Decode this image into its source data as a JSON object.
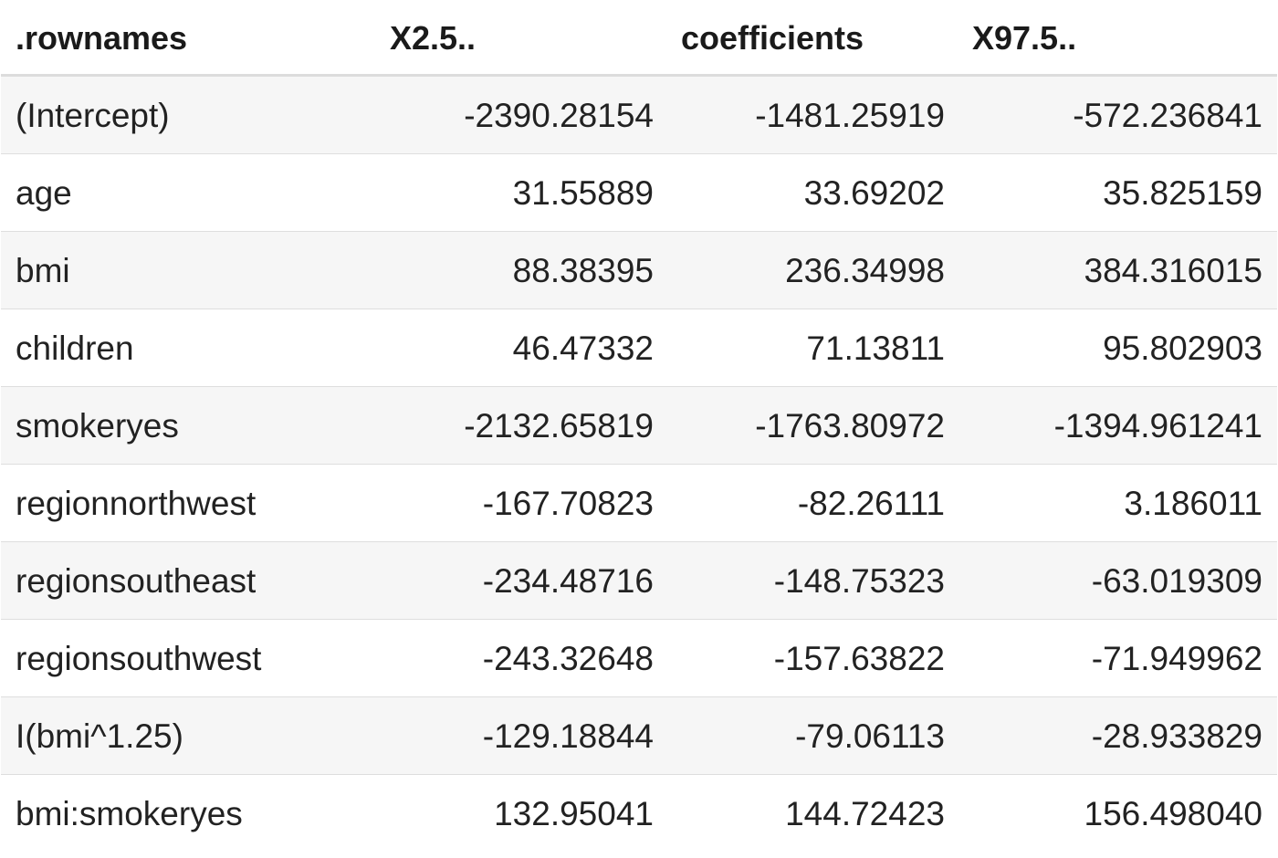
{
  "table": {
    "columns": [
      ".rownames",
      "X2.5..",
      "coefficients",
      "X97.5.."
    ],
    "rows": [
      [
        "(Intercept)",
        "-2390.28154",
        "-1481.25919",
        "-572.236841"
      ],
      [
        "age",
        "31.55889",
        "33.69202",
        "35.825159"
      ],
      [
        "bmi",
        "88.38395",
        "236.34998",
        "384.316015"
      ],
      [
        "children",
        "46.47332",
        "71.13811",
        "95.802903"
      ],
      [
        "smokeryes",
        "-2132.65819",
        "-1763.80972",
        "-1394.961241"
      ],
      [
        "regionnorthwest",
        "-167.70823",
        "-82.26111",
        "3.186011"
      ],
      [
        "regionsoutheast",
        "-234.48716",
        "-148.75323",
        "-63.019309"
      ],
      [
        "regionsouthwest",
        "-243.32648",
        "-157.63822",
        "-71.949962"
      ],
      [
        "I(bmi^1.25)",
        "-129.18844",
        "-79.06113",
        "-28.933829"
      ],
      [
        "bmi:smokeryes",
        "132.95041",
        "144.72423",
        "156.498040"
      ]
    ]
  }
}
